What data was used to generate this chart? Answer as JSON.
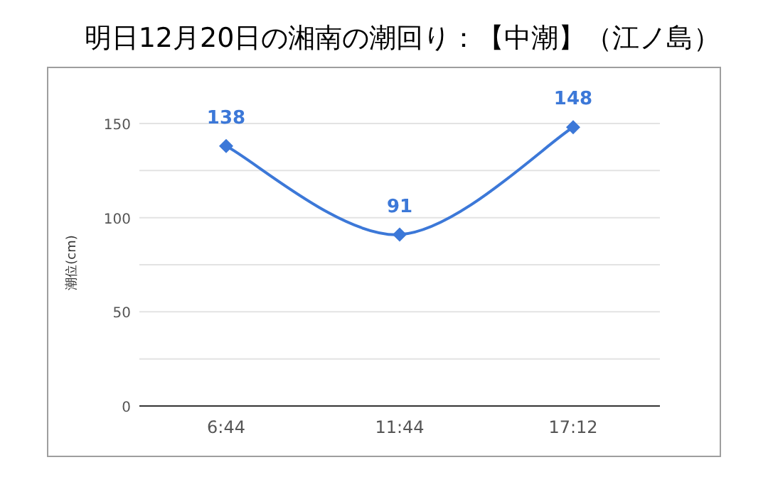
{
  "chart_data": {
    "type": "line",
    "title": "明日12月20日の湘南の潮回り：【中潮】（江ノ島）",
    "ylabel": "潮位(cm)",
    "categories": [
      "6:44",
      "11:44",
      "17:12"
    ],
    "series": [
      {
        "color": "#3c78d8",
        "values": [
          138,
          91,
          148
        ]
      }
    ],
    "ylim": [
      0,
      150
    ],
    "yticks": [
      0,
      {
        "value": 25,
        "label": null
      },
      50,
      {
        "value": 75,
        "label": null
      },
      100,
      {
        "value": 125,
        "label": null
      },
      150
    ],
    "grid": "y",
    "marker": "diamond",
    "line_style": "solid",
    "data_labels": true
  }
}
